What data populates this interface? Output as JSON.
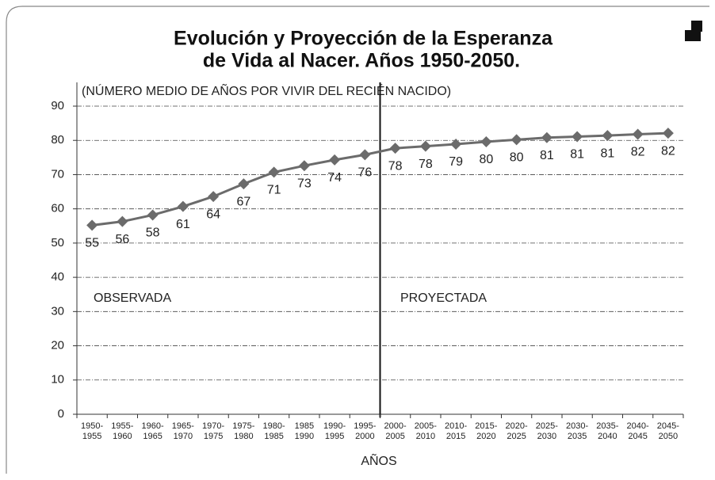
{
  "chart_data": {
    "type": "line",
    "title": [
      "Evolución y Proyección de la Esperanza",
      "de Vida al Nacer. Años 1950-2050."
    ],
    "subtitle": "(NÚMERO MEDIO DE AÑOS POR VIVIR DEL RECIÉN NACIDO)",
    "x_label": "AÑOS",
    "annotations": [
      "OBSERVADA",
      "PROYECTADA"
    ],
    "categories": [
      [
        "1950-",
        "1955"
      ],
      [
        "1955-",
        "1960"
      ],
      [
        "1960-",
        "1965"
      ],
      [
        "1965-",
        "1970"
      ],
      [
        "1970-",
        "1975"
      ],
      [
        "1975-",
        "1980"
      ],
      [
        "1980-",
        "1985"
      ],
      [
        "1985",
        "1990"
      ],
      [
        "1990-",
        "1995"
      ],
      [
        "1995-",
        "2000"
      ],
      [
        "2000-",
        "2005"
      ],
      [
        "2005-",
        "2010"
      ],
      [
        "2010-",
        "2015"
      ],
      [
        "2015-",
        "2020"
      ],
      [
        "2020-",
        "2025"
      ],
      [
        "2025-",
        "2030"
      ],
      [
        "2030-",
        "2035"
      ],
      [
        "2035-",
        "2040"
      ],
      [
        "2040-",
        "2045"
      ],
      [
        "2045-",
        "2050"
      ]
    ],
    "values": [
      55.2,
      56.3,
      58.2,
      60.7,
      63.6,
      67.3,
      70.7,
      72.6,
      74.3,
      75.8,
      77.7,
      78.3,
      78.9,
      79.6,
      80.2,
      80.8,
      81.1,
      81.4,
      81.8,
      82.1
    ],
    "value_labels": [
      "55",
      "56",
      "58",
      "61",
      "64",
      "67",
      "71",
      "73",
      "74",
      "76",
      "78",
      "78",
      "79",
      "80",
      "80",
      "81",
      "81",
      "81",
      "82",
      "82"
    ],
    "color": "#6b6b6b",
    "ylim": [
      0,
      90
    ],
    "yticks": [
      0,
      10,
      20,
      30,
      40,
      50,
      60,
      70,
      80,
      90
    ],
    "grid": true
  }
}
